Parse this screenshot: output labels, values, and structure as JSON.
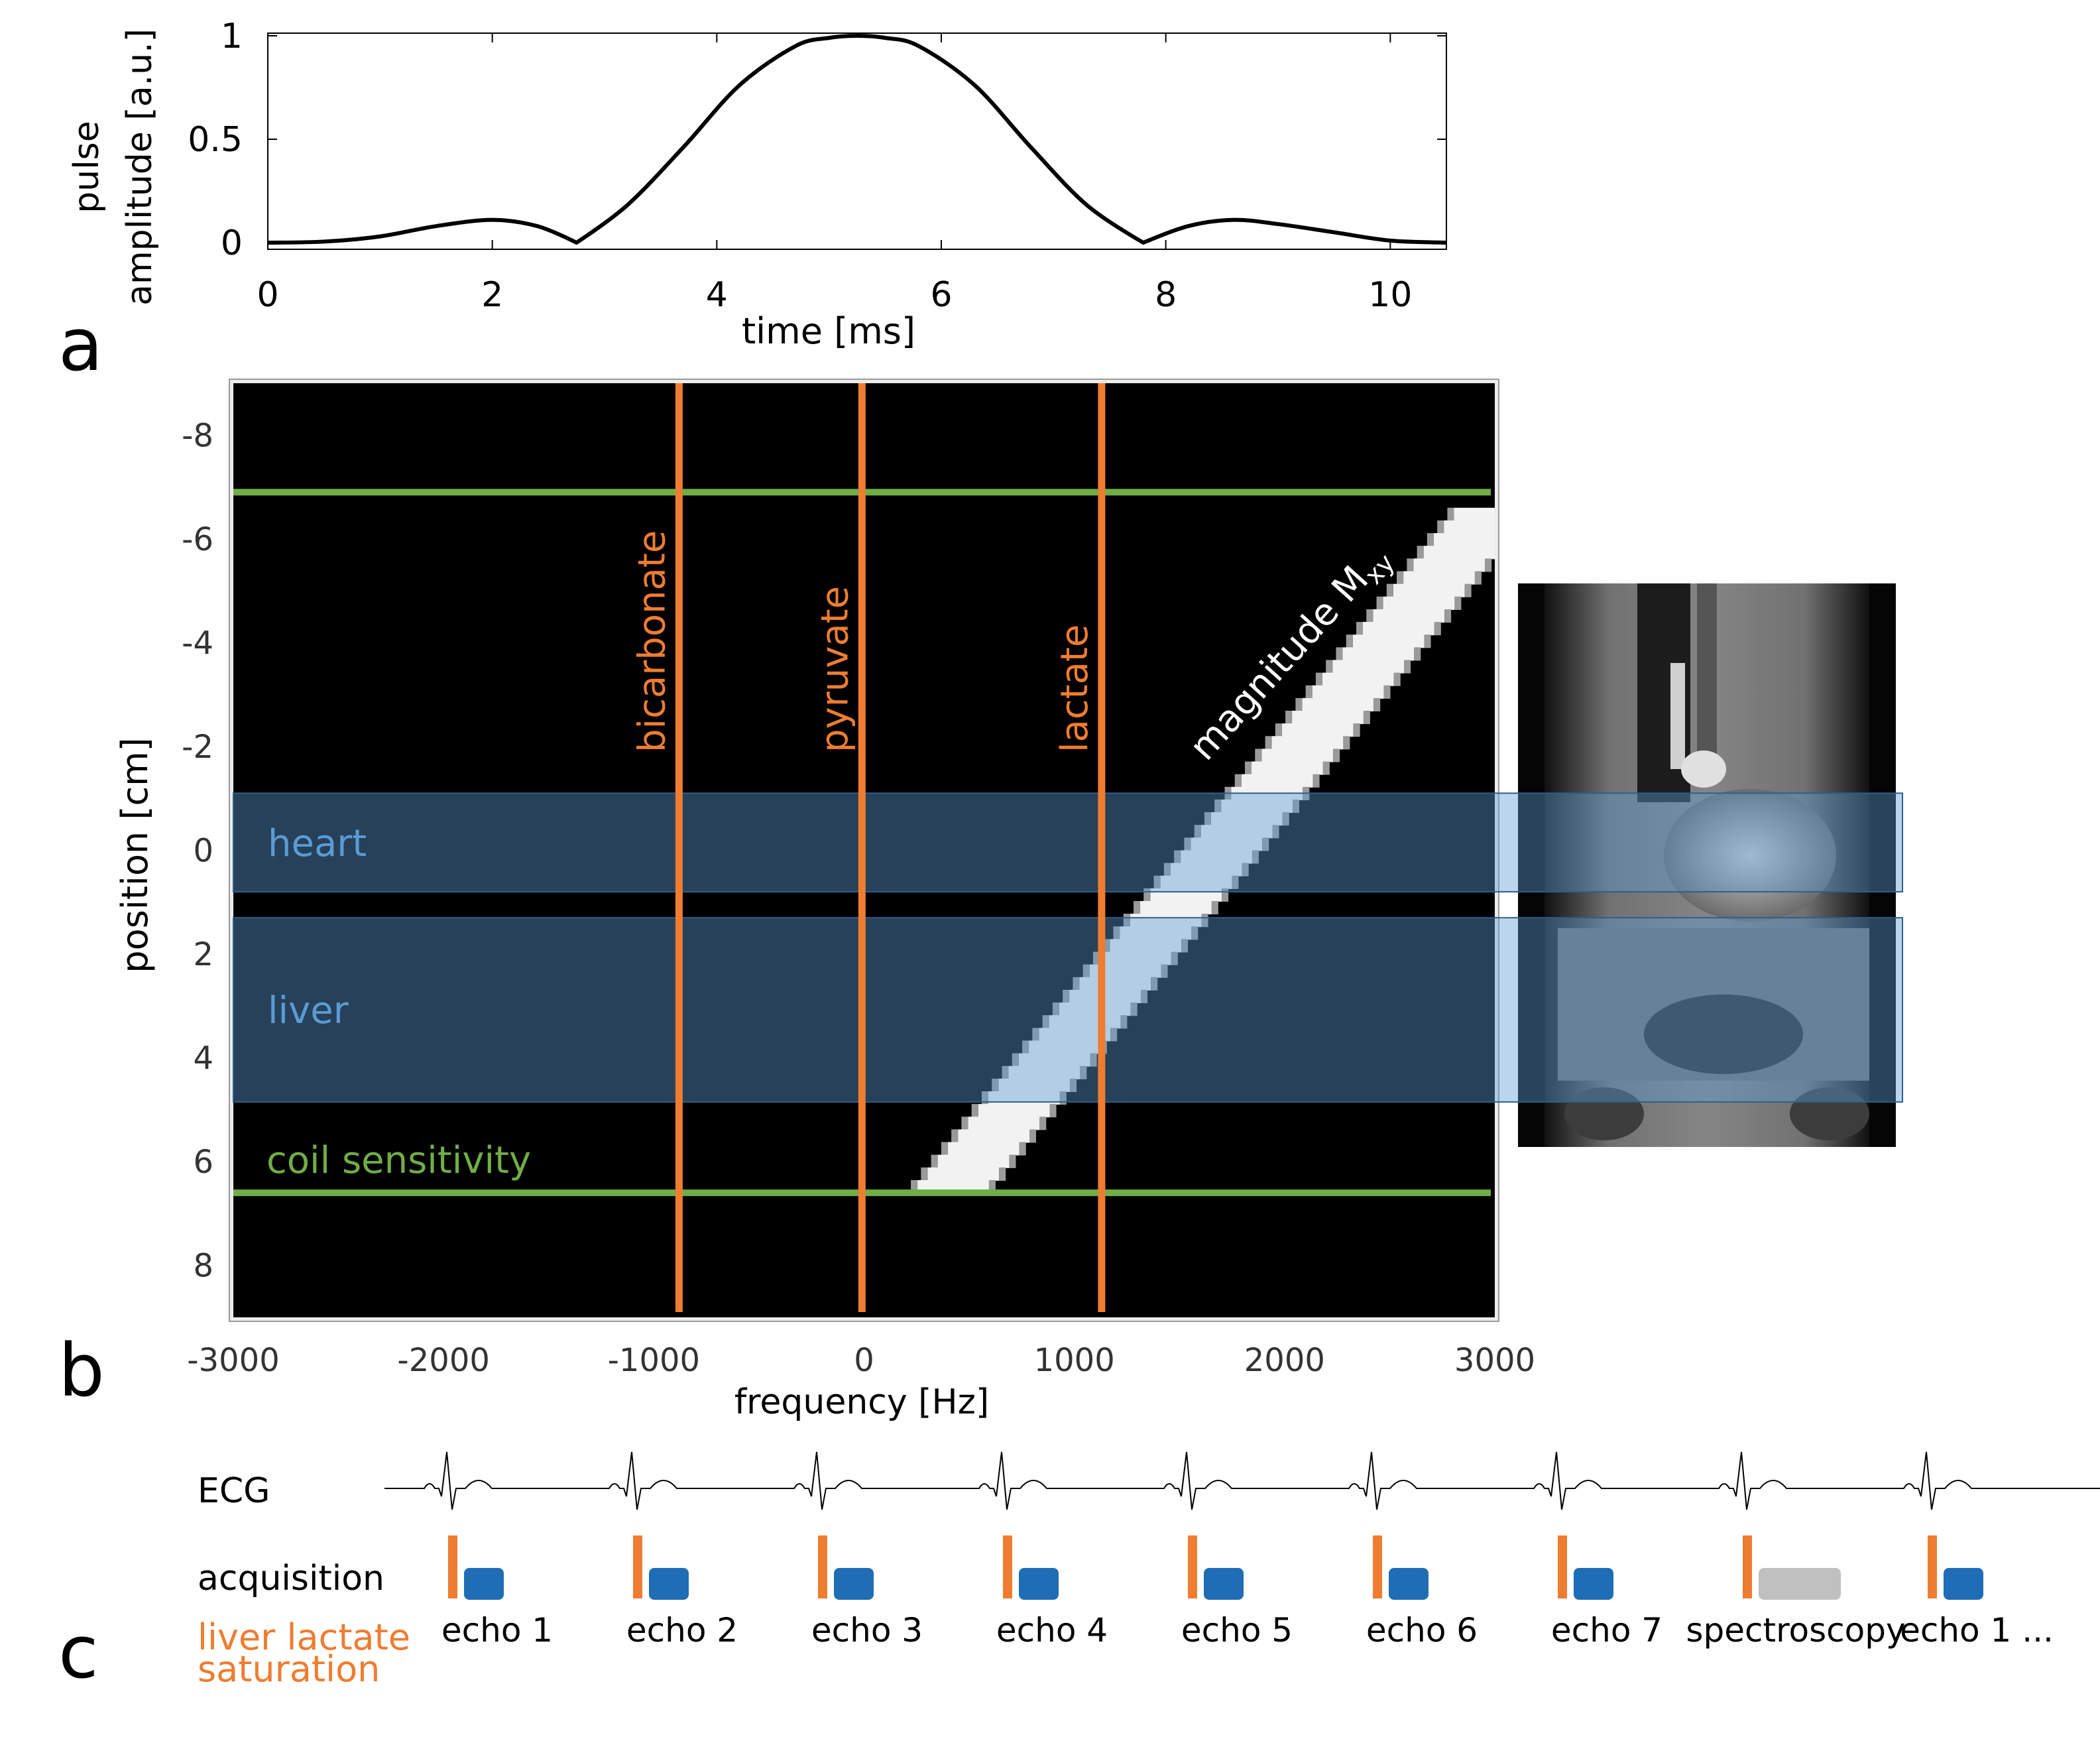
{
  "panels": {
    "a": "a",
    "b": "b",
    "c": "c"
  },
  "chart_data": [
    {
      "type": "line",
      "panel": "a",
      "xlabel": "time [ms]",
      "ylabel_line1": "pulse",
      "ylabel_line2": "amplitude [a.u.]",
      "xlim": [
        0,
        10.5
      ],
      "ylim": [
        0,
        1
      ],
      "xticks": [
        0,
        2,
        4,
        6,
        8,
        10
      ],
      "yticks": [
        0,
        0.5,
        1
      ],
      "ytick_labels": [
        "0",
        "0.5",
        "1"
      ],
      "series": [
        {
          "x": [
            0.0,
            0.5,
            1.0,
            1.5,
            2.0,
            2.4,
            2.75,
            3.2,
            3.7,
            4.2,
            4.7,
            5.0,
            5.25,
            5.5,
            5.8,
            6.3,
            6.8,
            7.3,
            7.8,
            8.2,
            8.6,
            9.0,
            9.5,
            10.0,
            10.5
          ],
          "y": [
            0.0,
            0.005,
            0.03,
            0.08,
            0.11,
            0.08,
            0.0,
            0.18,
            0.46,
            0.76,
            0.95,
            0.99,
            1.0,
            0.99,
            0.95,
            0.76,
            0.46,
            0.18,
            0.0,
            0.08,
            0.11,
            0.09,
            0.05,
            0.01,
            0.0
          ]
        }
      ]
    },
    {
      "type": "heatmap",
      "panel": "b",
      "xlabel": "frequency  [Hz]",
      "ylabel": "position [cm]",
      "xlim": [
        -3000,
        3000
      ],
      "ylim": [
        -9,
        9
      ],
      "xticks": [
        -3000,
        -2000,
        -1000,
        0,
        1000,
        2000,
        3000
      ],
      "yticks": [
        -8,
        -6,
        -4,
        -2,
        0,
        2,
        4,
        6,
        8
      ],
      "band": {
        "label_main": "magnitude M",
        "label_sub": "xy",
        "center_start": [
          3000,
          -6.6
        ],
        "center_end": [
          400,
          6.6
        ],
        "width_hz": 340
      },
      "vertical_lines": [
        {
          "label": "bicarbonate",
          "x": -880
        },
        {
          "label": "pyruvate",
          "x": -10
        },
        {
          "label": "lactate",
          "x": 1130
        }
      ],
      "horizontal_lines": [
        {
          "label": "",
          "y": -6.9
        },
        {
          "label": "coil sensitivity",
          "y": 6.6
        }
      ],
      "regions": [
        {
          "label": "heart",
          "y": [
            -1.1,
            0.8
          ]
        },
        {
          "label": "liver",
          "y": [
            1.3,
            4.85
          ]
        }
      ],
      "colors": {
        "metabolite_lines": "#ee7d31",
        "coil_lines": "#70ad47",
        "region_fill": "#5b9bd5",
        "region_label": "#5b9bd5",
        "band": "#f2f2f2"
      }
    }
  ],
  "timeline": {
    "ecg_label": "ECG",
    "acquisition_label": "acquisition",
    "saturation_label_line1": "liver lactate",
    "saturation_label_line2": "saturation",
    "beats": [
      {
        "label": "echo 1",
        "kind": "echo"
      },
      {
        "label": "echo 2",
        "kind": "echo"
      },
      {
        "label": "echo 3",
        "kind": "echo"
      },
      {
        "label": "echo 4",
        "kind": "echo"
      },
      {
        "label": "echo 5",
        "kind": "echo"
      },
      {
        "label": "echo 6",
        "kind": "echo"
      },
      {
        "label": "echo 7",
        "kind": "echo"
      },
      {
        "label": "spectroscopy",
        "kind": "spectroscopy"
      },
      {
        "label": "echo 1 ...",
        "kind": "echo"
      }
    ],
    "colors": {
      "saturation": "#ee7d31",
      "echo": "#1f6db5",
      "spectroscopy": "#c0c0c0"
    }
  },
  "mri_image": {
    "icon": "coronal-mri-image"
  }
}
